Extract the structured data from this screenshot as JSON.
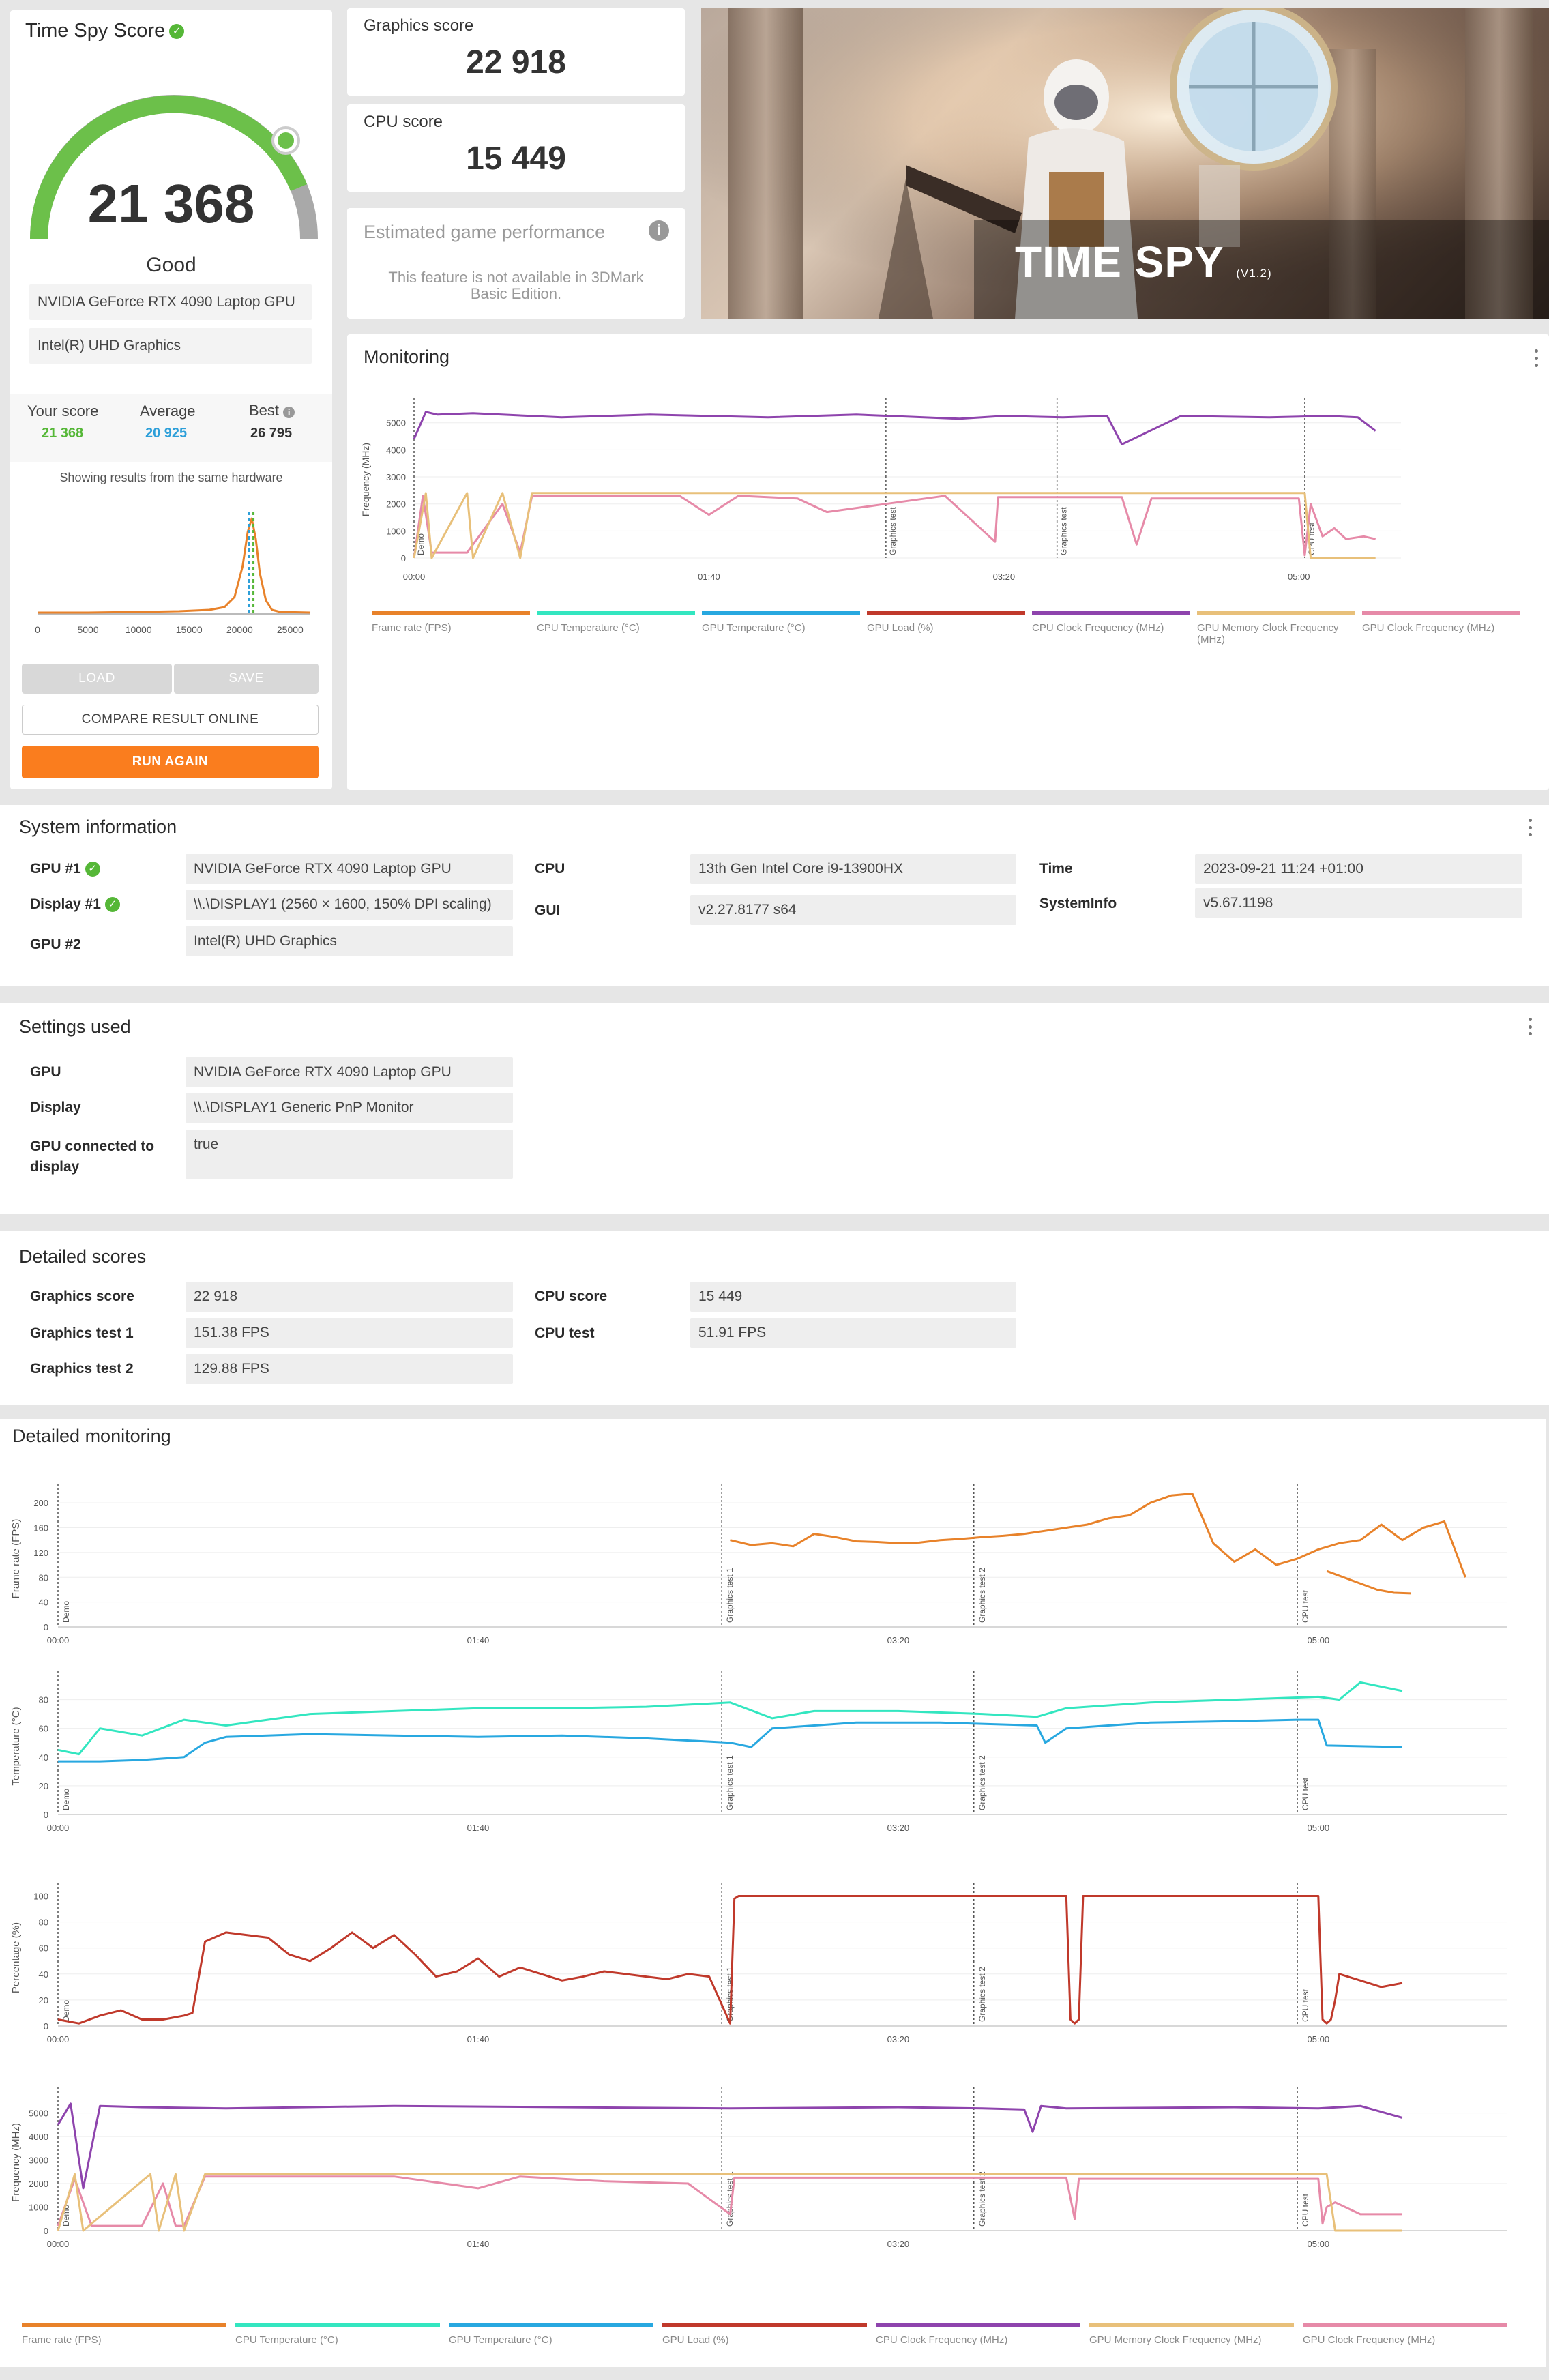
{
  "score_card": {
    "title": "Time Spy Score",
    "score": "21 368",
    "rating": "Good",
    "gpu1": "NVIDIA GeForce RTX 4090 Laptop GPU",
    "gpu2": "Intel(R) UHD Graphics",
    "your_score_label": "Your score",
    "your_score": "21 368",
    "average_label": "Average",
    "average": "20 925",
    "best_label": "Best",
    "best": "26 795",
    "hardware_note": "Showing results from the same hardware",
    "dist_ticks": [
      "0",
      "5000",
      "10000",
      "15000",
      "20000",
      "25000"
    ],
    "buttons": {
      "load": "LOAD",
      "save": "SAVE",
      "compare": "COMPARE RESULT ONLINE",
      "run": "RUN AGAIN"
    }
  },
  "graphics_score": {
    "label": "Graphics score",
    "value": "22 918"
  },
  "cpu_score": {
    "label": "CPU score",
    "value": "15 449"
  },
  "estimated": {
    "title": "Estimated game performance",
    "note_line1": "This feature is not available in 3DMark",
    "note_line2": "Basic Edition."
  },
  "banner": {
    "title": "TIME SPY",
    "version": "(V1.2)"
  },
  "monitoring": {
    "title": "Monitoring",
    "ylabel": "Frequency (MHz)",
    "yticks": [
      "0",
      "1000",
      "2000",
      "3000",
      "4000",
      "5000"
    ],
    "xticks": [
      "00:00",
      "01:40",
      "03:20",
      "05:00"
    ],
    "markers": [
      "Demo",
      "Graphics test",
      "Graphics test",
      "CPU test"
    ]
  },
  "legend": [
    {
      "name": "Frame rate (FPS)",
      "color": "#e8822a"
    },
    {
      "name": "CPU Temperature (°C)",
      "color": "#33e6c0"
    },
    {
      "name": "GPU Temperature (°C)",
      "color": "#28a8e0"
    },
    {
      "name": "GPU Load (%)",
      "color": "#c0392b"
    },
    {
      "name": "CPU Clock Frequency (MHz)",
      "color": "#8e44ad"
    },
    {
      "name": "GPU Memory Clock Frequency (MHz)",
      "color": "#e8c07a"
    },
    {
      "name": "GPU Clock Frequency (MHz)",
      "color": "#e68aa8"
    }
  ],
  "system_info": {
    "title": "System information",
    "gpu1_label": "GPU #1",
    "gpu1": "NVIDIA GeForce RTX 4090 Laptop GPU",
    "display1_label": "Display #1",
    "display1": "\\\\.\\DISPLAY1 (2560 × 1600, 150% DPI scaling)",
    "gpu2_label": "GPU #2",
    "gpu2": "Intel(R) UHD Graphics",
    "cpu_label": "CPU",
    "cpu": "13th Gen Intel Core i9-13900HX",
    "gui_label": "GUI",
    "gui": "v2.27.8177 s64",
    "time_label": "Time",
    "time": "2023-09-21 11:24 +01:00",
    "sysinfo_label": "SystemInfo",
    "sysinfo": "v5.67.1198"
  },
  "settings": {
    "title": "Settings used",
    "gpu_label": "GPU",
    "gpu": "NVIDIA GeForce RTX 4090 Laptop GPU",
    "display_label": "Display",
    "display": "\\\\.\\DISPLAY1 Generic PnP Monitor",
    "connected_label1": "GPU connected to",
    "connected_label2": "display",
    "connected": "true"
  },
  "detailed_scores": {
    "title": "Detailed scores",
    "gs_label": "Graphics score",
    "gs": "22 918",
    "gt1_label": "Graphics test 1",
    "gt1": "151.38 FPS",
    "gt2_label": "Graphics test 2",
    "gt2": "129.88 FPS",
    "cs_label": "CPU score",
    "cs": "15 449",
    "ct_label": "CPU test",
    "ct": "51.91 FPS"
  },
  "detailed_monitoring": {
    "title": "Detailed monitoring",
    "xticks": [
      "00:00",
      "01:40",
      "03:20",
      "05:00"
    ],
    "markers": [
      "Demo",
      "Graphics test 1",
      "Graphics test 2",
      "CPU test"
    ],
    "panels": [
      {
        "ylabel": "Frame rate (FPS)",
        "yticks": [
          "0",
          "40",
          "80",
          "120",
          "160",
          "200"
        ]
      },
      {
        "ylabel": "Temperature (°C)",
        "yticks": [
          "0",
          "20",
          "40",
          "60",
          "80"
        ]
      },
      {
        "ylabel": "Percentage (%)",
        "yticks": [
          "0",
          "20",
          "40",
          "60",
          "80",
          "100"
        ]
      },
      {
        "ylabel": "Frequency (MHz)",
        "yticks": [
          "0",
          "1000",
          "2000",
          "3000",
          "4000",
          "5000"
        ]
      }
    ]
  },
  "chart_data": [
    {
      "type": "line",
      "title": "Monitoring",
      "ylabel": "Frequency (MHz)",
      "x_unit": "seconds",
      "xlim": [
        0,
        330
      ],
      "ylim": [
        0,
        5800
      ],
      "series": [
        {
          "name": "CPU Clock Frequency (MHz)",
          "color": "#8e44ad",
          "x": [
            0,
            4,
            8,
            20,
            50,
            80,
            100,
            120,
            150,
            185,
            200,
            220,
            235,
            240,
            260,
            290,
            310,
            320,
            326
          ],
          "y": [
            4400,
            5400,
            5300,
            5350,
            5200,
            5300,
            5250,
            5200,
            5300,
            5150,
            5250,
            5200,
            5250,
            4200,
            5250,
            5200,
            5250,
            5200,
            4700
          ]
        },
        {
          "name": "GPU Clock Frequency (MHz)",
          "color": "#e68aa8",
          "x": [
            0,
            3,
            6,
            10,
            18,
            30,
            36,
            40,
            60,
            90,
            100,
            110,
            130,
            140,
            160,
            180,
            197,
            198,
            240,
            245,
            250,
            300,
            302,
            304,
            308,
            312,
            316,
            322,
            326
          ],
          "y": [
            0,
            2300,
            200,
            200,
            200,
            2000,
            200,
            2300,
            2300,
            2300,
            1600,
            2300,
            2200,
            1700,
            2000,
            2300,
            600,
            2250,
            2250,
            500,
            2200,
            2200,
            100,
            2000,
            800,
            1100,
            700,
            800,
            700
          ]
        },
        {
          "name": "GPU Memory Clock Frequency (MHz)",
          "color": "#e8c07a",
          "x": [
            0,
            4,
            6,
            18,
            20,
            30,
            36,
            40,
            200,
            300,
            302,
            304,
            326
          ],
          "y": [
            0,
            2400,
            0,
            2400,
            0,
            2400,
            0,
            2400,
            2400,
            2400,
            2400,
            0,
            0
          ]
        }
      ]
    },
    {
      "type": "line",
      "title": "Frame rate (FPS)",
      "x_unit": "seconds",
      "xlim": [
        0,
        345
      ],
      "ylim": [
        0,
        220
      ],
      "series": [
        {
          "name": "Frame rate (FPS)",
          "color": "#e8822a",
          "x": [
            160,
            165,
            170,
            175,
            180,
            185,
            190,
            195,
            200,
            205,
            210,
            215,
            220,
            225,
            230,
            235,
            240,
            245,
            250,
            255,
            260,
            265,
            270,
            275,
            280,
            285,
            290,
            295,
            300,
            305,
            310,
            315,
            320,
            325,
            330,
            335
          ],
          "y": [
            140,
            132,
            135,
            130,
            150,
            145,
            138,
            137,
            135,
            136,
            140,
            142,
            145,
            147,
            150,
            155,
            160,
            165,
            175,
            180,
            200,
            212,
            215,
            135,
            105,
            125,
            100,
            110,
            125,
            135,
            140,
            165,
            140,
            160,
            170,
            80
          ]
        },
        {
          "name": "Frame rate CPU test",
          "color": "#e8822a",
          "x": [
            302,
            306,
            310,
            314,
            318,
            322
          ],
          "y": [
            90,
            80,
            70,
            60,
            55,
            54
          ]
        }
      ]
    },
    {
      "type": "line",
      "title": "Temperature (°C)",
      "x_unit": "seconds",
      "ylim": [
        0,
        95
      ],
      "series": [
        {
          "name": "CPU Temperature (°C)",
          "color": "#33e6c0",
          "x": [
            0,
            5,
            10,
            20,
            30,
            40,
            60,
            80,
            100,
            120,
            140,
            160,
            170,
            180,
            200,
            220,
            233,
            240,
            260,
            280,
            300,
            305,
            310,
            320
          ],
          "y": [
            45,
            42,
            60,
            55,
            66,
            62,
            70,
            72,
            74,
            74,
            75,
            78,
            67,
            72,
            72,
            70,
            68,
            74,
            78,
            80,
            82,
            80,
            92,
            86
          ]
        },
        {
          "name": "GPU Temperature (°C)",
          "color": "#28a8e0",
          "x": [
            0,
            10,
            20,
            30,
            35,
            40,
            60,
            80,
            100,
            120,
            140,
            160,
            165,
            170,
            190,
            210,
            233,
            235,
            240,
            260,
            280,
            295,
            300,
            302,
            320
          ],
          "y": [
            37,
            37,
            38,
            40,
            50,
            54,
            56,
            55,
            54,
            55,
            53,
            50,
            47,
            60,
            64,
            64,
            62,
            50,
            60,
            64,
            65,
            66,
            66,
            48,
            47
          ]
        }
      ]
    },
    {
      "type": "line",
      "title": "Percentage (%)",
      "x_unit": "seconds",
      "ylim": [
        0,
        105
      ],
      "series": [
        {
          "name": "GPU Load (%)",
          "color": "#c0392b",
          "x": [
            0,
            5,
            10,
            15,
            20,
            25,
            30,
            32,
            35,
            40,
            45,
            50,
            55,
            60,
            65,
            70,
            75,
            80,
            85,
            90,
            95,
            100,
            105,
            110,
            115,
            120,
            125,
            130,
            135,
            140,
            145,
            150,
            155,
            160,
            161,
            162,
            163,
            240,
            241,
            242,
            243,
            244,
            300,
            301,
            302,
            303,
            304,
            305,
            310,
            315,
            320
          ],
          "y": [
            5,
            2,
            8,
            12,
            5,
            5,
            8,
            10,
            65,
            72,
            70,
            68,
            55,
            50,
            60,
            72,
            60,
            70,
            55,
            38,
            42,
            52,
            38,
            45,
            40,
            35,
            38,
            42,
            40,
            38,
            36,
            40,
            38,
            2,
            98,
            100,
            100,
            100,
            5,
            2,
            5,
            100,
            100,
            5,
            2,
            5,
            20,
            40,
            35,
            30,
            33
          ]
        }
      ]
    },
    {
      "type": "line",
      "title": "Frequency (MHz)",
      "x_unit": "seconds",
      "ylim": [
        0,
        5800
      ],
      "series": [
        {
          "name": "CPU Clock Frequency (MHz)",
          "color": "#8e44ad",
          "x": [
            0,
            3,
            6,
            10,
            20,
            40,
            80,
            120,
            160,
            200,
            220,
            230,
            232,
            234,
            240,
            280,
            300,
            310,
            320
          ],
          "y": [
            4500,
            5400,
            1800,
            5300,
            5250,
            5200,
            5300,
            5250,
            5200,
            5250,
            5200,
            5150,
            4200,
            5300,
            5200,
            5250,
            5200,
            5300,
            4800
          ]
        },
        {
          "name": "GPU Clock Frequency (MHz)",
          "color": "#e68aa8",
          "x": [
            0,
            4,
            8,
            12,
            20,
            25,
            28,
            30,
            35,
            40,
            80,
            100,
            110,
            130,
            150,
            160,
            161,
            240,
            242,
            243,
            300,
            301,
            302,
            304,
            310,
            320
          ],
          "y": [
            200,
            2200,
            200,
            200,
            200,
            2000,
            200,
            200,
            2300,
            2300,
            2300,
            1800,
            2300,
            2100,
            2000,
            700,
            2250,
            2250,
            500,
            2200,
            2200,
            300,
            1000,
            1200,
            700,
            700
          ]
        },
        {
          "name": "GPU Memory Clock Frequency (MHz)",
          "color": "#e8c07a",
          "x": [
            0,
            4,
            6,
            22,
            24,
            28,
            30,
            35,
            160,
            300,
            302,
            304,
            320
          ],
          "y": [
            0,
            2400,
            0,
            2400,
            0,
            2400,
            0,
            2400,
            2400,
            2400,
            2400,
            0,
            0
          ]
        }
      ]
    }
  ]
}
